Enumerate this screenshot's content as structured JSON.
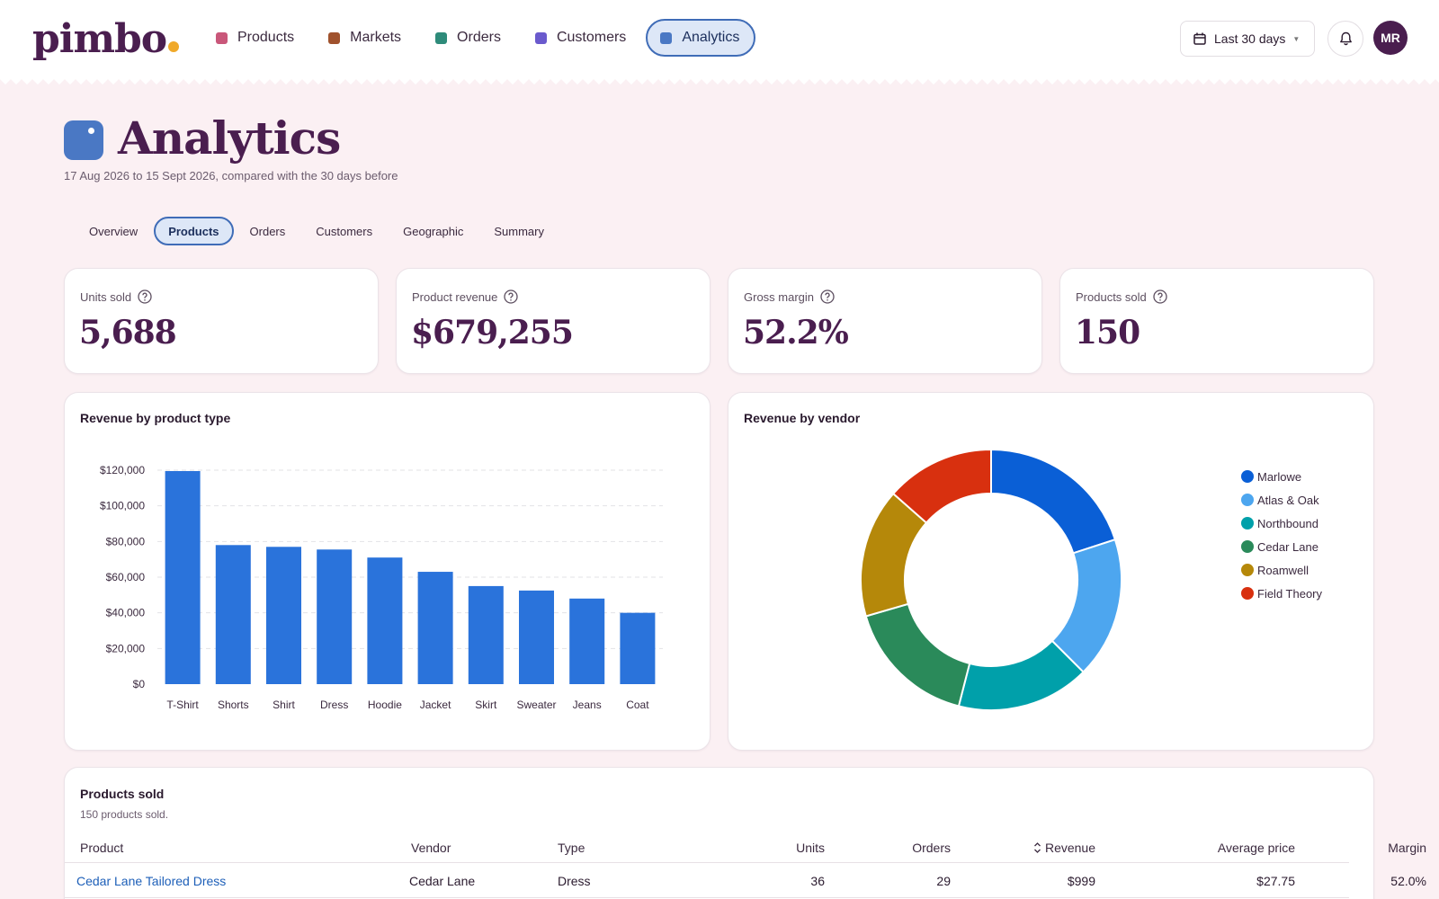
{
  "app": {
    "logo": "pimbo",
    "avatar_initials": "MR",
    "date_range_label": "Last 30 days"
  },
  "nav": [
    {
      "label": "Products",
      "color": "#c9577a"
    },
    {
      "label": "Markets",
      "color": "#a0522d"
    },
    {
      "label": "Orders",
      "color": "#2e8b7a"
    },
    {
      "label": "Customers",
      "color": "#6a5acd"
    },
    {
      "label": "Analytics",
      "color": "#4a78c4",
      "active": true
    }
  ],
  "page": {
    "title": "Analytics",
    "subtitle": "17 Aug 2026 to 15 Sept 2026, compared with the 30 days before"
  },
  "tabs": [
    {
      "label": "Overview"
    },
    {
      "label": "Products",
      "active": true
    },
    {
      "label": "Orders"
    },
    {
      "label": "Customers"
    },
    {
      "label": "Geographic"
    },
    {
      "label": "Summary"
    }
  ],
  "kpis": [
    {
      "label": "Units sold",
      "value": "5,688"
    },
    {
      "label": "Product revenue",
      "value": "$679,255"
    },
    {
      "label": "Gross margin",
      "value": "52.2%"
    },
    {
      "label": "Products sold",
      "value": "150"
    }
  ],
  "bar_card": {
    "title": "Revenue by product type"
  },
  "donut_card": {
    "title": "Revenue by vendor"
  },
  "chart_data": [
    {
      "type": "bar",
      "title": "Revenue by product type",
      "categories": [
        "T-Shirt",
        "Shorts",
        "Shirt",
        "Dress",
        "Hoodie",
        "Jacket",
        "Skirt",
        "Sweater",
        "Jeans",
        "Coat"
      ],
      "values": [
        119500,
        78000,
        77000,
        75500,
        71000,
        63000,
        55000,
        52500,
        48000,
        40000
      ],
      "ylim": [
        0,
        120000
      ],
      "yticks": [
        "$0",
        "$20,000",
        "$40,000",
        "$60,000",
        "$80,000",
        "$100,000",
        "$120,000"
      ],
      "color": "#2a73db",
      "grid": true
    },
    {
      "type": "pie",
      "title": "Revenue by vendor",
      "labels": [
        "Marlowe",
        "Atlas & Oak",
        "Northbound",
        "Cedar Lane",
        "Roamwell",
        "Field Theory"
      ],
      "values": [
        20,
        17.5,
        16.5,
        16.5,
        16,
        13.5
      ],
      "colors": [
        "#0a5fd6",
        "#4da6ef",
        "#00a0aa",
        "#2a8a5a",
        "#b5880a",
        "#d8300f"
      ],
      "legend": "right"
    }
  ],
  "table": {
    "title": "Products sold",
    "subtitle": "150 products sold.",
    "columns": [
      "Product",
      "Vendor",
      "Type",
      "Units",
      "Orders",
      "Revenue",
      "Average price",
      "Margin"
    ],
    "rows": [
      {
        "product": "Cedar Lane Tailored Dress",
        "vendor": "Cedar Lane",
        "type": "Dress",
        "units": "36",
        "orders": "29",
        "revenue": "$999",
        "avg_price": "$27.75",
        "margin": "52.0%"
      }
    ]
  }
}
